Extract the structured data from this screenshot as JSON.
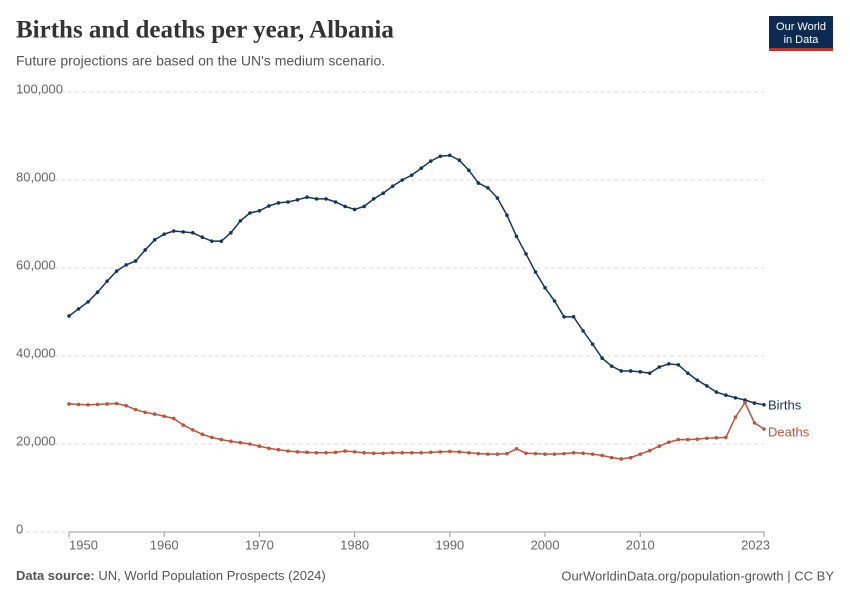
{
  "chart_data": {
    "type": "line",
    "title": "Births and deaths per year, Albania",
    "subtitle": "Future projections are based on the UN's medium scenario.",
    "logo": [
      "Our World",
      "in Data"
    ],
    "source_label": "Data source:",
    "source": "UN, World Population Prospects (2024)",
    "url": "OurWorldinData.org/population-growth | CC BY",
    "x": [
      1950,
      1951,
      1952,
      1953,
      1954,
      1955,
      1956,
      1957,
      1958,
      1959,
      1960,
      1961,
      1962,
      1963,
      1964,
      1965,
      1966,
      1967,
      1968,
      1969,
      1970,
      1971,
      1972,
      1973,
      1974,
      1975,
      1976,
      1977,
      1978,
      1979,
      1980,
      1981,
      1982,
      1983,
      1984,
      1985,
      1986,
      1987,
      1988,
      1989,
      1990,
      1991,
      1992,
      1993,
      1994,
      1995,
      1996,
      1997,
      1998,
      1999,
      2000,
      2001,
      2002,
      2003,
      2004,
      2005,
      2006,
      2007,
      2008,
      2009,
      2010,
      2011,
      2012,
      2013,
      2014,
      2015,
      2016,
      2017,
      2018,
      2019,
      2020,
      2021,
      2022,
      2023
    ],
    "series": [
      {
        "name": "Births",
        "color": "#15355e",
        "values": [
          49100,
          50700,
          52300,
          54500,
          57000,
          59300,
          60700,
          61600,
          64100,
          66400,
          67700,
          68400,
          68200,
          68000,
          67000,
          66100,
          66100,
          68000,
          70700,
          72500,
          73000,
          74100,
          74800,
          75000,
          75500,
          76100,
          75700,
          75700,
          75000,
          74000,
          73300,
          74000,
          75700,
          77000,
          78600,
          80000,
          81100,
          82700,
          84300,
          85400,
          85600,
          84500,
          82200,
          79300,
          78200,
          75900,
          72000,
          67200,
          63200,
          59100,
          55500,
          52500,
          48900,
          48900,
          45700,
          42700,
          39500,
          37700,
          36600,
          36600,
          36400,
          36100,
          37500,
          38200,
          38000,
          36100,
          34500,
          33200,
          31800,
          31100,
          30500,
          30000,
          29300,
          28900
        ]
      },
      {
        "name": "Deaths",
        "color": "#c0533a",
        "values": [
          29100,
          29000,
          28900,
          29000,
          29100,
          29200,
          28700,
          27800,
          27200,
          26800,
          26300,
          25800,
          24300,
          23200,
          22200,
          21500,
          21000,
          20600,
          20300,
          20000,
          19500,
          19000,
          18700,
          18400,
          18200,
          18100,
          18000,
          18000,
          18100,
          18400,
          18200,
          18000,
          17900,
          17900,
          18000,
          18000,
          18000,
          18000,
          18100,
          18200,
          18300,
          18200,
          18000,
          17800,
          17700,
          17700,
          17800,
          18900,
          17900,
          17800,
          17700,
          17700,
          17800,
          18000,
          17900,
          17700,
          17400,
          16900,
          16600,
          16900,
          17700,
          18500,
          19500,
          20400,
          21000,
          21000,
          21100,
          21300,
          21400,
          21500,
          26100,
          29400,
          24800,
          23400
        ]
      }
    ],
    "xlim": [
      1950,
      2023
    ],
    "xticks": [
      1950,
      1960,
      1970,
      1980,
      1990,
      2000,
      2010,
      2023
    ],
    "ylim": [
      0,
      100000
    ],
    "yticks": [
      0,
      {
        "value": 20000,
        "label": "20,000"
      },
      {
        "value": 40000,
        "label": "40,000"
      },
      {
        "value": 60000,
        "label": "60,000"
      },
      {
        "value": 80000,
        "label": "80,000"
      },
      {
        "value": 100000,
        "label": "100,000"
      }
    ],
    "grid": true
  }
}
